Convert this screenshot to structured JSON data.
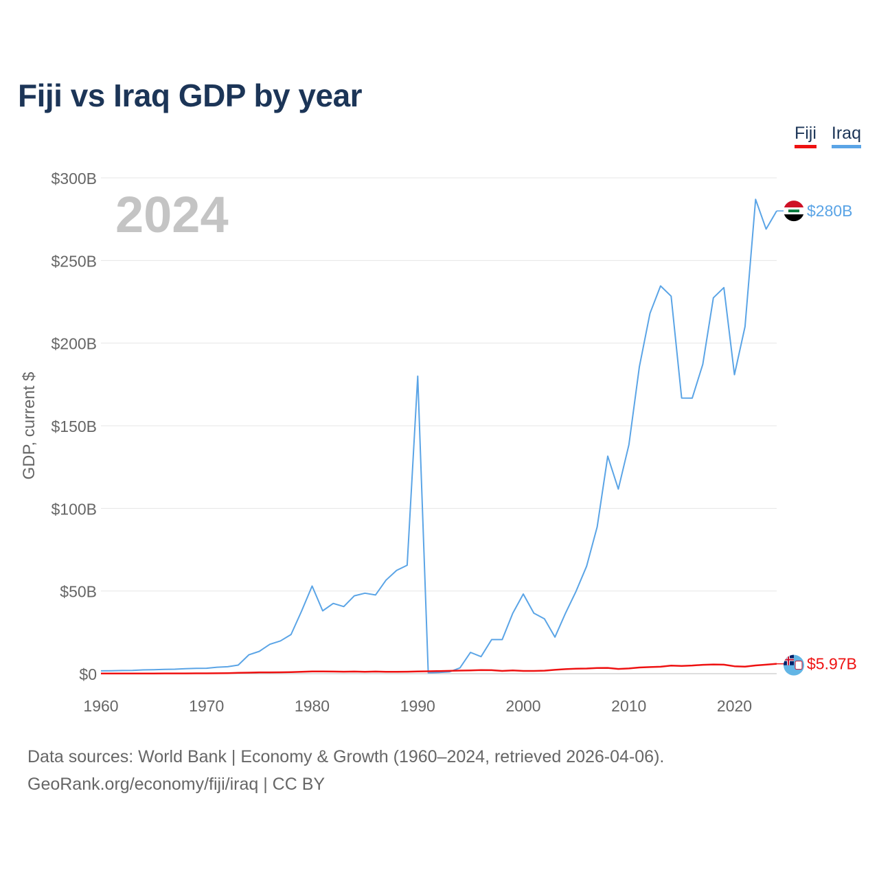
{
  "chart_data": {
    "type": "line",
    "title": "Fiji vs Iraq GDP by year",
    "ylabel": "GDP, current $",
    "xlabel": "",
    "year_label": "2024",
    "xlim": [
      1960,
      2024
    ],
    "ylim": [
      0,
      300
    ],
    "y_unit": "billions USD",
    "grid": true,
    "legend_position": "top-right",
    "x_ticks": [
      {
        "value": 1960,
        "label": "1960"
      },
      {
        "value": 1970,
        "label": "1970"
      },
      {
        "value": 1980,
        "label": "1980"
      },
      {
        "value": 1990,
        "label": "1990"
      },
      {
        "value": 2000,
        "label": "2000"
      },
      {
        "value": 2010,
        "label": "2010"
      },
      {
        "value": 2020,
        "label": "2020"
      }
    ],
    "y_ticks": [
      {
        "value": 0,
        "label": "$0"
      },
      {
        "value": 50,
        "label": "$50B"
      },
      {
        "value": 100,
        "label": "$100B"
      },
      {
        "value": 150,
        "label": "$150B"
      },
      {
        "value": 200,
        "label": "$200B"
      },
      {
        "value": 250,
        "label": "$250B"
      },
      {
        "value": 300,
        "label": "$300B"
      }
    ],
    "x": [
      1960,
      1961,
      1962,
      1963,
      1964,
      1965,
      1966,
      1967,
      1968,
      1969,
      1970,
      1971,
      1972,
      1973,
      1974,
      1975,
      1976,
      1977,
      1978,
      1979,
      1980,
      1981,
      1982,
      1983,
      1984,
      1985,
      1986,
      1987,
      1988,
      1989,
      1990,
      1991,
      1992,
      1993,
      1994,
      1995,
      1996,
      1997,
      1998,
      1999,
      2000,
      2001,
      2002,
      2003,
      2004,
      2005,
      2006,
      2007,
      2008,
      2009,
      2010,
      2011,
      2012,
      2013,
      2014,
      2015,
      2016,
      2017,
      2018,
      2019,
      2020,
      2021,
      2022,
      2023,
      2024
    ],
    "series": [
      {
        "name": "Fiji",
        "color": "#ee1111",
        "end_label": "$5.97B",
        "flag_icon": "fiji-flag-icon",
        "values": [
          0.11,
          0.12,
          0.12,
          0.13,
          0.13,
          0.14,
          0.15,
          0.16,
          0.18,
          0.2,
          0.22,
          0.25,
          0.33,
          0.48,
          0.63,
          0.77,
          0.8,
          0.85,
          0.96,
          1.15,
          1.37,
          1.36,
          1.3,
          1.2,
          1.28,
          1.17,
          1.3,
          1.17,
          1.11,
          1.2,
          1.34,
          1.45,
          1.57,
          1.7,
          1.87,
          1.97,
          2.14,
          2.1,
          1.65,
          1.97,
          1.68,
          1.66,
          1.84,
          2.32,
          2.73,
          3.0,
          3.1,
          3.4,
          3.5,
          2.87,
          3.14,
          3.76,
          3.97,
          4.19,
          4.85,
          4.68,
          4.93,
          5.35,
          5.58,
          5.45,
          4.48,
          4.3,
          4.98,
          5.44,
          5.97
        ]
      },
      {
        "name": "Iraq",
        "color": "#5aa4e6",
        "end_label": "$280B",
        "flag_icon": "iraq-flag-icon",
        "values": [
          1.7,
          1.8,
          1.9,
          1.97,
          2.3,
          2.4,
          2.6,
          2.7,
          3.0,
          3.2,
          3.3,
          3.9,
          4.2,
          5.2,
          11.4,
          13.5,
          17.8,
          19.8,
          23.7,
          37.8,
          53.0,
          38.0,
          42.5,
          40.6,
          47.1,
          48.7,
          47.6,
          56.6,
          62.5,
          65.6,
          180.0,
          0.6,
          0.7,
          1.1,
          3.5,
          12.9,
          10.3,
          20.6,
          20.6,
          36.5,
          48.2,
          36.6,
          33.2,
          22.1,
          36.6,
          49.9,
          65.1,
          88.8,
          131.6,
          111.7,
          138.5,
          185.8,
          218.0,
          234.6,
          228.4,
          166.8,
          166.7,
          187.2,
          227.4,
          233.6,
          180.9,
          210.0,
          287.0,
          269.0,
          280.0
        ]
      }
    ]
  },
  "legend": {
    "fiji": "Fiji",
    "iraq": "Iraq"
  },
  "footer": {
    "line1": "Data sources: World Bank | Economy & Growth (1960–2024, retrieved 2026-04-06).",
    "line2": "GeoRank.org/economy/fiji/iraq | CC BY"
  }
}
